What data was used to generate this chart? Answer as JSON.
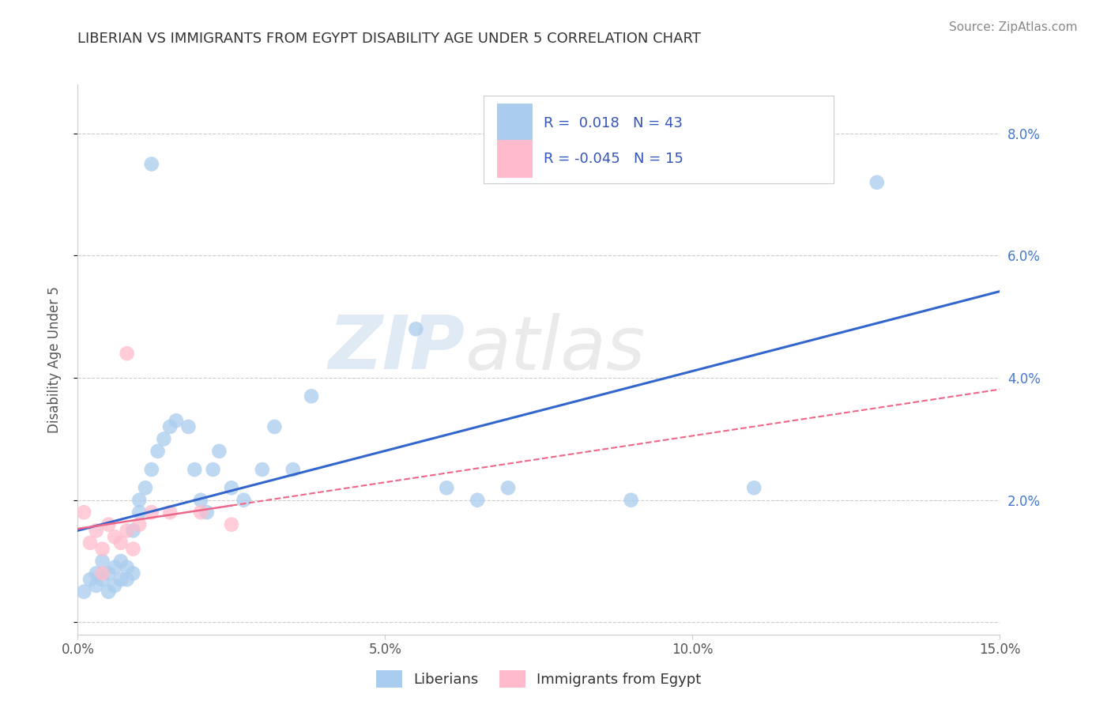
{
  "title": "LIBERIAN VS IMMIGRANTS FROM EGYPT DISABILITY AGE UNDER 5 CORRELATION CHART",
  "source": "Source: ZipAtlas.com",
  "ylabel": "Disability Age Under 5",
  "xlim": [
    0.0,
    0.15
  ],
  "ylim": [
    -0.002,
    0.088
  ],
  "xticks": [
    0.0,
    0.05,
    0.1,
    0.15
  ],
  "xticklabels": [
    "0.0%",
    "5.0%",
    "10.0%",
    "15.0%"
  ],
  "yticks": [
    0.0,
    0.02,
    0.04,
    0.06,
    0.08
  ],
  "yticklabels_right": [
    "",
    "2.0%",
    "4.0%",
    "6.0%",
    "8.0%"
  ],
  "liberian_R": 0.018,
  "liberian_N": 43,
  "egypt_R": -0.045,
  "egypt_N": 15,
  "liberian_color": "#aaccee",
  "egypt_color": "#ffbbcc",
  "liberian_line_color": "#3366cc",
  "egypt_line_color": "#ee6688",
  "liberian_x": [
    0.001,
    0.002,
    0.003,
    0.003,
    0.004,
    0.004,
    0.005,
    0.005,
    0.006,
    0.006,
    0.007,
    0.007,
    0.008,
    0.008,
    0.009,
    0.009,
    0.01,
    0.01,
    0.011,
    0.012,
    0.013,
    0.014,
    0.015,
    0.016,
    0.018,
    0.019,
    0.02,
    0.021,
    0.022,
    0.023,
    0.025,
    0.027,
    0.03,
    0.032,
    0.035,
    0.038,
    0.055,
    0.06,
    0.065,
    0.07,
    0.09,
    0.11,
    0.13
  ],
  "liberian_y": [
    0.005,
    0.007,
    0.006,
    0.008,
    0.007,
    0.01,
    0.005,
    0.008,
    0.006,
    0.009,
    0.007,
    0.01,
    0.007,
    0.009,
    0.008,
    0.015,
    0.018,
    0.02,
    0.022,
    0.025,
    0.028,
    0.03,
    0.032,
    0.033,
    0.032,
    0.025,
    0.02,
    0.018,
    0.025,
    0.028,
    0.022,
    0.02,
    0.025,
    0.032,
    0.025,
    0.037,
    0.048,
    0.022,
    0.02,
    0.022,
    0.02,
    0.022,
    0.072
  ],
  "liberian_outlier_x": [
    0.012
  ],
  "liberian_outlier_y": [
    0.075
  ],
  "egypt_x": [
    0.001,
    0.002,
    0.003,
    0.004,
    0.004,
    0.005,
    0.006,
    0.007,
    0.008,
    0.009,
    0.01,
    0.012,
    0.015,
    0.02,
    0.025
  ],
  "egypt_y": [
    0.018,
    0.013,
    0.015,
    0.012,
    0.008,
    0.016,
    0.014,
    0.013,
    0.015,
    0.012,
    0.016,
    0.018,
    0.018,
    0.018,
    0.016
  ],
  "egypt_outlier_x": [
    0.008
  ],
  "egypt_outlier_y": [
    0.044
  ],
  "watermark_zip": "ZIP",
  "watermark_atlas": "atlas",
  "background_color": "#ffffff",
  "grid_color": "#cccccc",
  "right_axis_color": "#4477cc"
}
